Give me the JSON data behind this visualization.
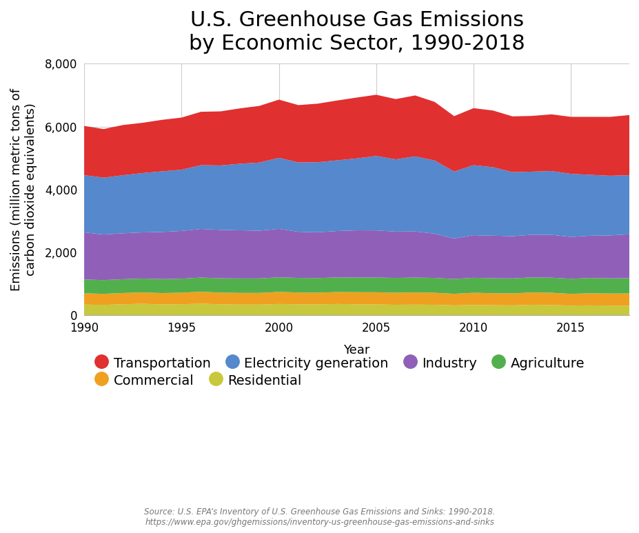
{
  "title": "U.S. Greenhouse Gas Emissions\nby Economic Sector, 1990-2018",
  "xlabel": "Year",
  "ylabel": "Emissions (million metric tons of\ncarbon dioxide equivalents)",
  "source_line1": "Source: U.S. EPA’s Inventory of U.S. Greenhouse Gas Emissions and Sinks: 1990-2018.",
  "source_line2": "https://www.epa.gov/ghgemissions/inventory-us-greenhouse-gas-emissions-and-sinks",
  "years": [
    1990,
    1991,
    1992,
    1993,
    1994,
    1995,
    1996,
    1997,
    1998,
    1999,
    2000,
    2001,
    2002,
    2003,
    2004,
    2005,
    2006,
    2007,
    2008,
    2009,
    2010,
    2011,
    2012,
    2013,
    2014,
    2015,
    2016,
    2017,
    2018
  ],
  "sectors": {
    "Residential": [
      338,
      328,
      348,
      363,
      342,
      348,
      367,
      347,
      337,
      337,
      357,
      347,
      342,
      357,
      347,
      342,
      332,
      337,
      332,
      312,
      327,
      317,
      312,
      332,
      322,
      307,
      312,
      307,
      302
    ],
    "Commercial": [
      358,
      352,
      358,
      362,
      362,
      368,
      380,
      372,
      372,
      372,
      385,
      375,
      375,
      380,
      385,
      388,
      382,
      388,
      382,
      368,
      388,
      382,
      382,
      392,
      392,
      372,
      388,
      382,
      390
    ],
    "Agriculture": [
      440,
      437,
      440,
      440,
      445,
      445,
      450,
      455,
      460,
      460,
      464,
      464,
      464,
      464,
      468,
      468,
      472,
      472,
      472,
      472,
      476,
      476,
      476,
      480,
      480,
      480,
      484,
      484,
      488
    ],
    "Industry": [
      1500,
      1450,
      1460,
      1470,
      1500,
      1520,
      1548,
      1542,
      1532,
      1520,
      1542,
      1468,
      1458,
      1478,
      1500,
      1500,
      1474,
      1468,
      1408,
      1290,
      1355,
      1355,
      1344,
      1355,
      1365,
      1330,
      1345,
      1365,
      1396
    ],
    "Electricity generation": [
      1820,
      1808,
      1848,
      1888,
      1928,
      1948,
      2028,
      2048,
      2118,
      2168,
      2258,
      2208,
      2228,
      2248,
      2288,
      2368,
      2298,
      2388,
      2328,
      2128,
      2228,
      2178,
      2038,
      2008,
      2028,
      2008,
      1938,
      1898,
      1877
    ],
    "Transportation": [
      1565,
      1547,
      1597,
      1598,
      1638,
      1658,
      1699,
      1720,
      1761,
      1802,
      1852,
      1822,
      1863,
      1904,
      1936,
      1947,
      1917,
      1938,
      1864,
      1763,
      1813,
      1803,
      1773,
      1773,
      1803,
      1813,
      1843,
      1873,
      1913
    ]
  },
  "colors": {
    "Residential": "#c8c83c",
    "Commercial": "#f0a020",
    "Agriculture": "#52b04c",
    "Industry": "#9060b8",
    "Electricity generation": "#5588cc",
    "Transportation": "#e03030"
  },
  "legend_order": [
    "Transportation",
    "Electricity generation",
    "Industry",
    "Agriculture",
    "Commercial",
    "Residential"
  ],
  "ylim": [
    0,
    8000
  ],
  "yticks": [
    0,
    2000,
    4000,
    6000,
    8000
  ],
  "background_color": "#ffffff",
  "grid_color": "#cccccc",
  "title_fontsize": 22,
  "label_fontsize": 13,
  "tick_fontsize": 12,
  "legend_fontsize": 14
}
